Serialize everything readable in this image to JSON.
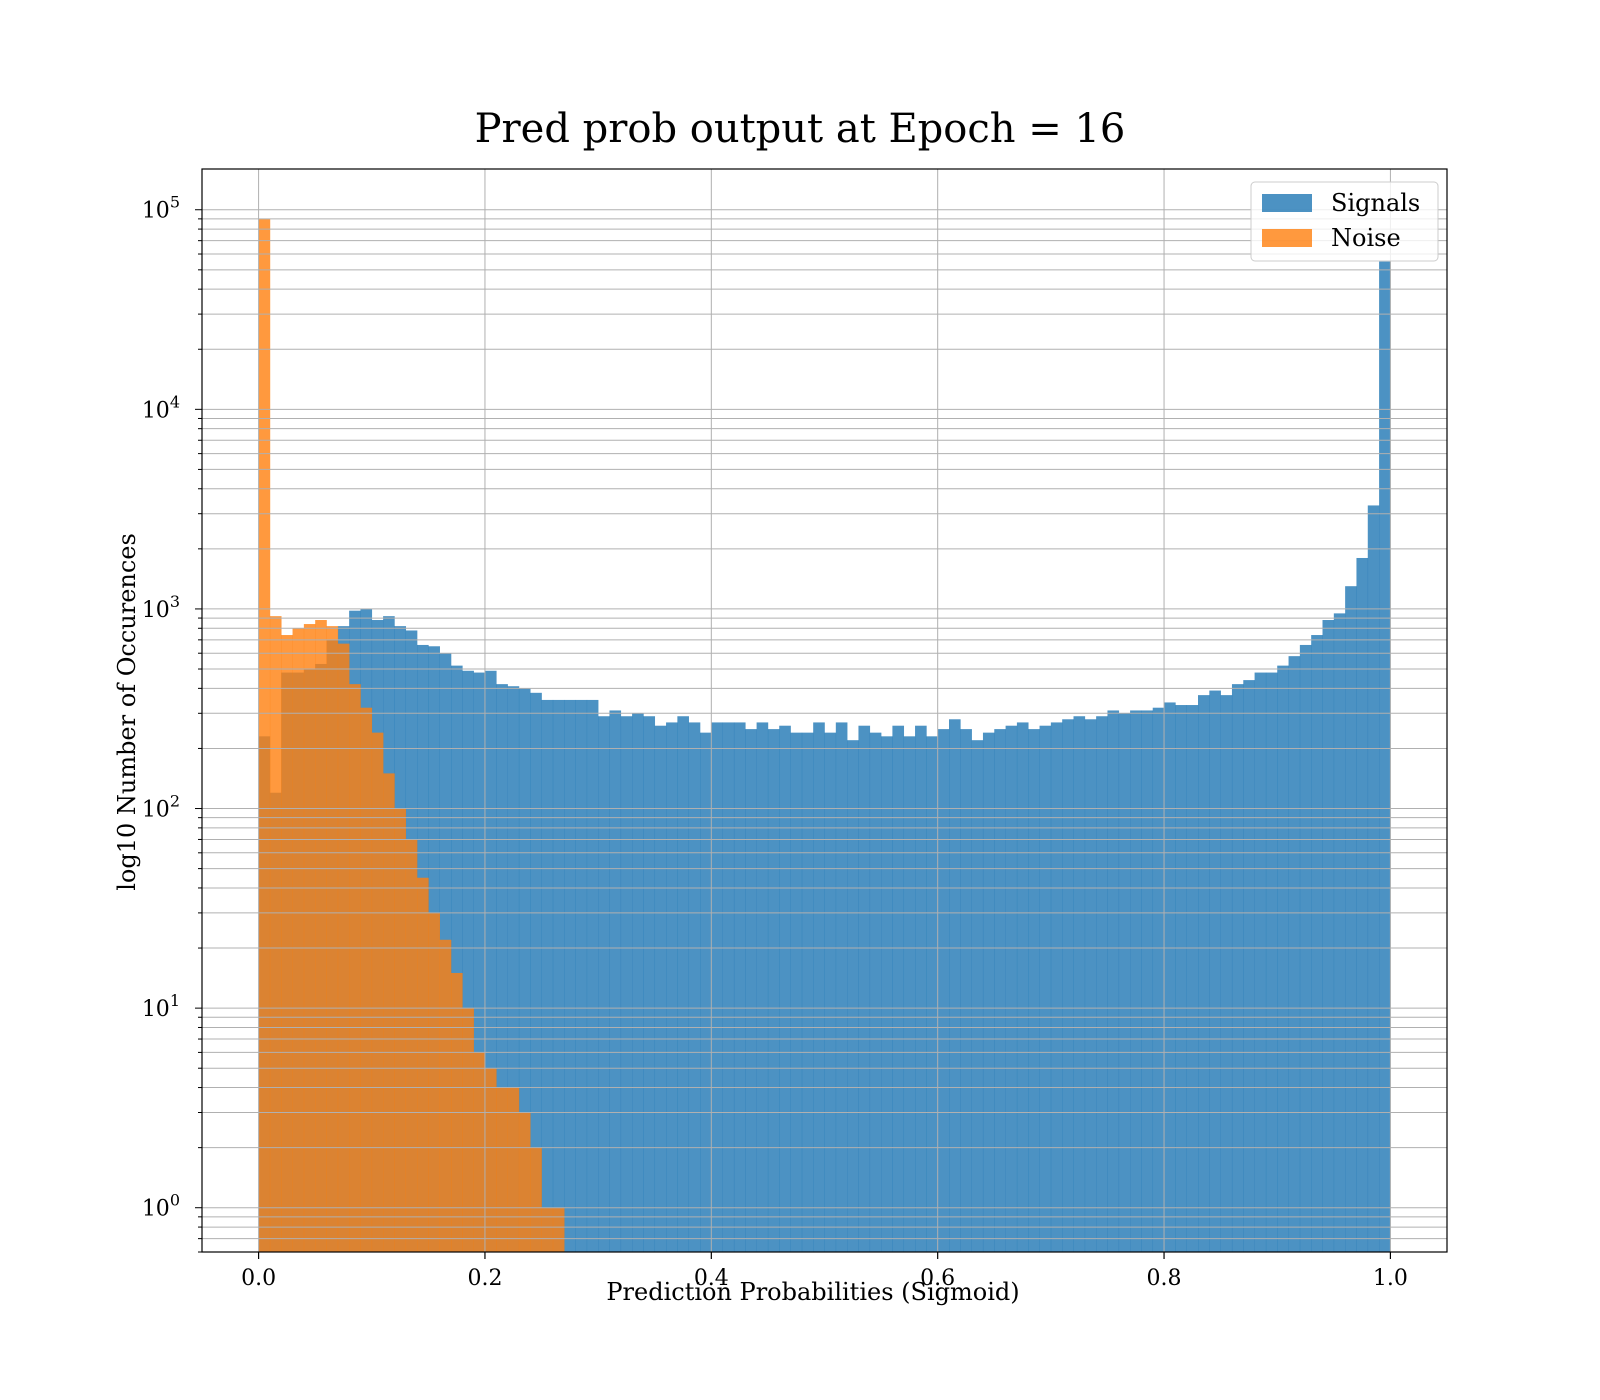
{
  "chart_data": {
    "type": "bar",
    "title": "Pred prob output at Epoch = 16",
    "xlabel": "Prediction Probabilities (Sigmoid)",
    "ylabel": "log10 Number of Occurences",
    "y_scale": "log",
    "xlim": [
      -0.05,
      1.05
    ],
    "ylim": [
      0.6,
      160000
    ],
    "x_ticks": [
      0.0,
      0.2,
      0.4,
      0.6,
      0.8,
      1.0
    ],
    "x_tick_labels": [
      "0.0",
      "0.2",
      "0.4",
      "0.6",
      "0.8",
      "1.0"
    ],
    "y_ticks": [
      1,
      10,
      100,
      1000,
      10000,
      100000
    ],
    "y_tick_exponents": [
      "0",
      "1",
      "2",
      "3",
      "4",
      "5"
    ],
    "y_tick_base": "10",
    "grid": true,
    "legend_position": "top-right",
    "bins": 100,
    "bin_range": [
      0.0,
      1.0
    ],
    "series": [
      {
        "name": "Signals",
        "color": "#1f77b4",
        "values": [
          230,
          120,
          480,
          480,
          500,
          530,
          700,
          820,
          980,
          1000,
          880,
          920,
          820,
          780,
          660,
          650,
          600,
          520,
          490,
          480,
          490,
          420,
          410,
          400,
          380,
          350,
          350,
          350,
          350,
          350,
          290,
          310,
          290,
          300,
          290,
          260,
          270,
          290,
          270,
          240,
          270,
          270,
          270,
          250,
          270,
          250,
          260,
          240,
          240,
          270,
          240,
          270,
          220,
          260,
          240,
          230,
          260,
          230,
          260,
          230,
          250,
          280,
          250,
          220,
          240,
          250,
          260,
          270,
          250,
          260,
          270,
          280,
          290,
          280,
          290,
          310,
          300,
          310,
          310,
          320,
          340,
          330,
          330,
          370,
          390,
          370,
          420,
          440,
          480,
          480,
          520,
          580,
          660,
          740,
          880,
          950,
          1300,
          1800,
          3300,
          55000
        ]
      },
      {
        "name": "Noise",
        "color": "#ff7f0e",
        "values": [
          90000,
          920,
          740,
          800,
          840,
          880,
          820,
          670,
          420,
          320,
          240,
          150,
          100,
          70,
          45,
          30,
          22,
          15,
          10,
          6,
          5,
          4,
          4,
          3,
          2,
          1,
          1,
          0,
          0,
          0,
          0,
          0,
          0,
          0,
          0,
          0,
          0,
          0,
          0,
          0,
          0,
          0,
          0,
          0,
          0,
          0,
          0,
          0,
          0,
          0,
          0,
          0,
          0,
          0,
          0,
          0,
          0,
          0,
          0,
          0,
          0,
          0,
          0,
          0,
          0,
          0,
          0,
          0,
          0,
          0,
          0,
          0,
          0,
          0,
          0,
          0,
          0,
          0,
          0,
          0,
          0,
          0,
          0,
          0,
          0,
          0,
          0,
          0,
          0,
          0,
          0,
          0,
          0,
          0,
          0,
          0,
          0,
          0,
          0,
          0
        ]
      }
    ]
  }
}
